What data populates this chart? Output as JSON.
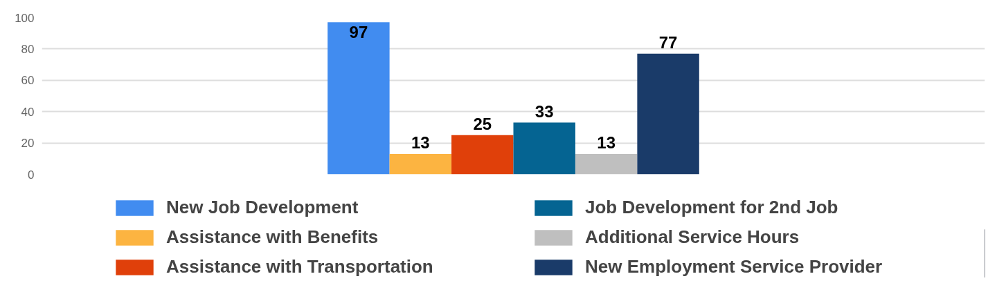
{
  "chart_data": {
    "type": "bar",
    "categories": [
      null
    ],
    "series": [
      {
        "name": "New Job Development",
        "color": "#418cf0",
        "values": [
          97
        ]
      },
      {
        "name": "Assistance with Benefits",
        "color": "#fcb441",
        "values": [
          13
        ]
      },
      {
        "name": "Assistance with Transportation",
        "color": "#e0400a",
        "values": [
          25
        ]
      },
      {
        "name": "Job Development for 2nd Job",
        "color": "#056492",
        "values": [
          33
        ]
      },
      {
        "name": "Additional Service Hours",
        "color": "#bfbfbf",
        "values": [
          13
        ]
      },
      {
        "name": "New Employment Service Provider",
        "color": "#1a3b69",
        "values": [
          77
        ]
      }
    ],
    "ylim": [
      0,
      100
    ],
    "yticks": [
      0,
      20,
      40,
      60,
      80,
      100
    ],
    "grid": "y",
    "legend": "bottom",
    "data_labels": true
  }
}
